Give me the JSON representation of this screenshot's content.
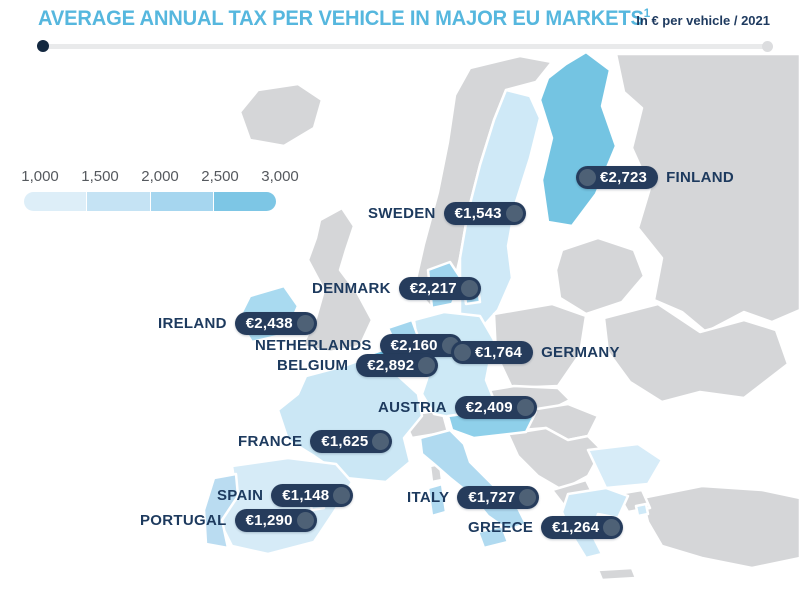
{
  "header": {
    "title": "AVERAGE ANNUAL TAX PER VEHICLE IN MAJOR EU MARKETS",
    "title_superscript": "1",
    "unit_note": "In € per vehicle / 2021"
  },
  "colors": {
    "title_blue": "#56b7de",
    "navy": "#1d3a5e",
    "badge_bg": "#263c5c",
    "badge_knob": "#4e6176",
    "map_gray": "#d5d6d8",
    "scale": [
      "#ddeef8",
      "#c5e3f4",
      "#a6d6ef",
      "#7dc6e5"
    ]
  },
  "legend": {
    "ticks": [
      "1,000",
      "1,500",
      "2,000",
      "2,500",
      "3,000"
    ]
  },
  "chart_data": {
    "type": "heatmap",
    "subtype": "choropleth-map-europe",
    "title": "AVERAGE ANNUAL TAX PER VEHICLE IN MAJOR EU MARKETS¹",
    "unit": "€ per vehicle",
    "year": "2021",
    "scale": {
      "min": 1000,
      "max": 3000,
      "tick_labels": [
        "1,000",
        "1,500",
        "2,000",
        "2,500",
        "3,000"
      ],
      "colors": [
        "#ddeef8",
        "#c5e3f4",
        "#a6d6ef",
        "#7dc6e5"
      ],
      "legend_position": "top-left"
    },
    "countries": [
      {
        "name": "FINLAND",
        "value": 2723,
        "label": "€2,723"
      },
      {
        "name": "SWEDEN",
        "value": 1543,
        "label": "€1,543"
      },
      {
        "name": "DENMARK",
        "value": 2217,
        "label": "€2,217"
      },
      {
        "name": "IRELAND",
        "value": 2438,
        "label": "€2,438"
      },
      {
        "name": "NETHERLANDS",
        "value": 2160,
        "label": "€2,160"
      },
      {
        "name": "BELGIUM",
        "value": 2892,
        "label": "€2,892"
      },
      {
        "name": "GERMANY",
        "value": 1764,
        "label": "€1,764"
      },
      {
        "name": "AUSTRIA",
        "value": 2409,
        "label": "€2,409"
      },
      {
        "name": "FRANCE",
        "value": 1625,
        "label": "€1,625"
      },
      {
        "name": "SPAIN",
        "value": 1148,
        "label": "€1,148"
      },
      {
        "name": "PORTUGAL",
        "value": 1290,
        "label": "€1,290"
      },
      {
        "name": "ITALY",
        "value": 1727,
        "label": "€1,727"
      },
      {
        "name": "GREECE",
        "value": 1264,
        "label": "€1,264"
      }
    ]
  }
}
